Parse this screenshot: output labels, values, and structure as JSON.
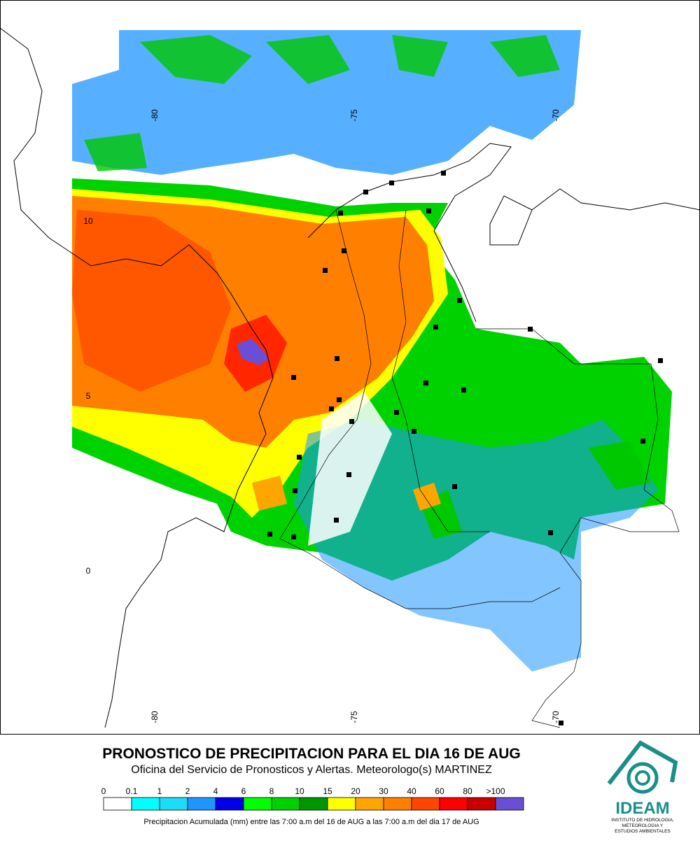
{
  "map": {
    "lon_labels_top": [
      "-80",
      "-75",
      "-70"
    ],
    "lon_labels_bottom": [
      "-80",
      "-75",
      "-70"
    ],
    "lat_labels": [
      "10",
      "5",
      "0"
    ],
    "title": "PRONOSTICO DE PRECIPITACION PARA EL DIA 16 DE AUG",
    "subtitle": "Oficina del Servicio de Pronosticos y Alertas. Meteorologo(s) MARTINEZ",
    "legend": {
      "labels": [
        "0",
        "0.1",
        "1",
        "2",
        "4",
        "6",
        "8",
        "10",
        "15",
        "20",
        "30",
        "40",
        "60",
        "80",
        ">100"
      ],
      "colors": [
        "#ffffff",
        "#00ffff",
        "#1edcf5",
        "#1e96ff",
        "#0000e6",
        "#00ff00",
        "#00d200",
        "#009600",
        "#ffff00",
        "#ffa500",
        "#ff7f00",
        "#ff4500",
        "#ff0000",
        "#c80000",
        "#6a4fd6"
      ]
    },
    "caption": "Precipitacion Acumulada (mm) entre las 7:00 a.m del 16 de AUG a las 7:00 a.m del dia 17 de AUG",
    "logo": {
      "name": "IDEAM",
      "lines": [
        "INSTITUTO DE HIDROLOGIA,",
        "METEOROLOGIA Y",
        "ESTUDIOS AMBIENTALES"
      ]
    }
  }
}
